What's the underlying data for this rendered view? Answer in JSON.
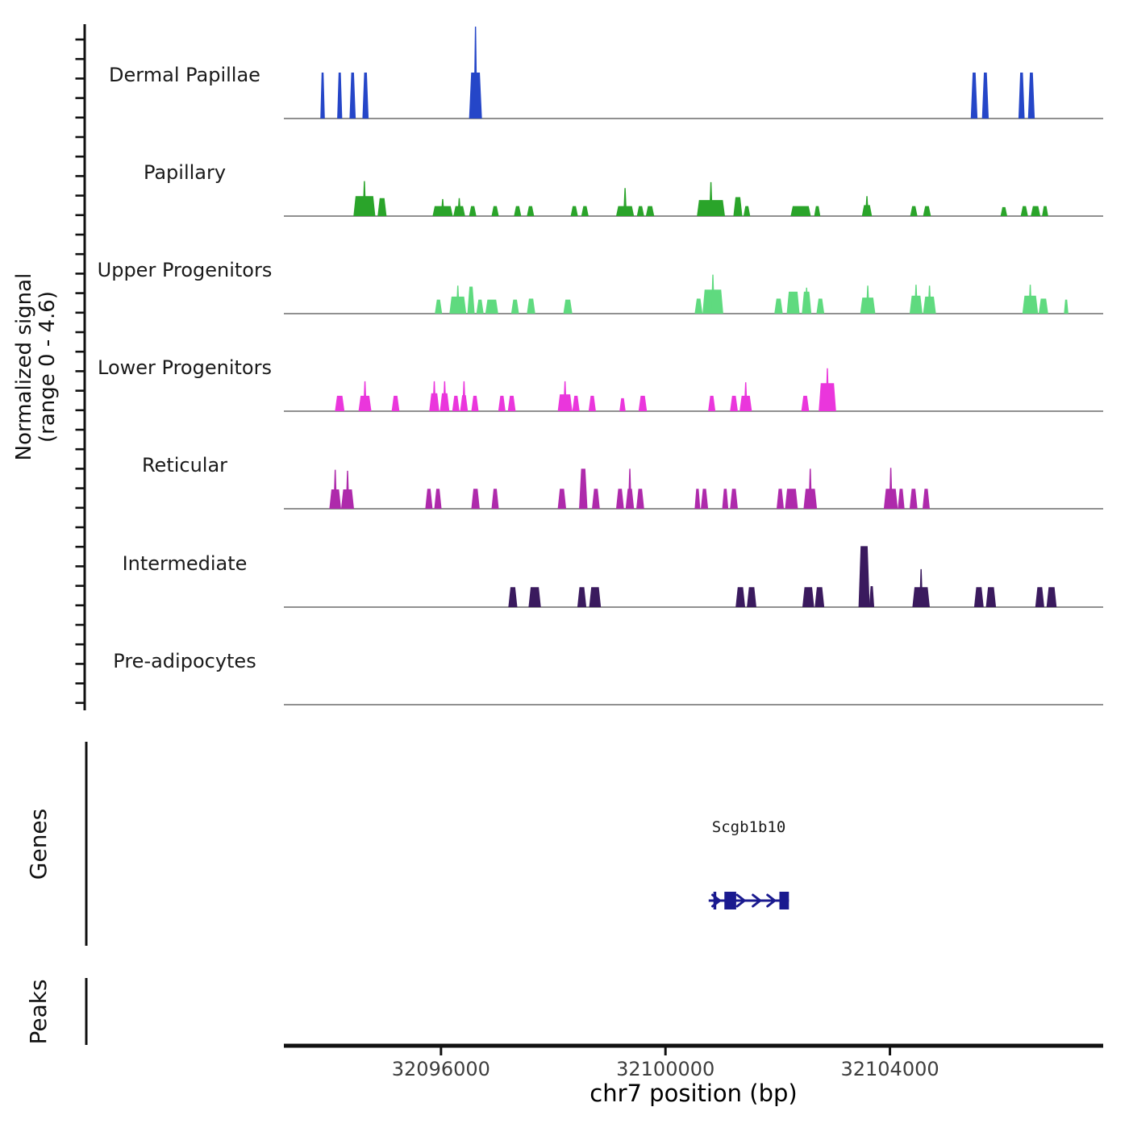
{
  "figure": {
    "y_axis_label_line1": "Normalized signal",
    "y_axis_label_line2": "(range 0 - 4.6)",
    "genes_section_label": "Genes",
    "peaks_section_label": "Peaks"
  },
  "chart_data": {
    "type": "area",
    "description": "Genome browser signal tracks, normalized ATAC/ChIP-style coverage per cell population",
    "x_axis": {
      "title": "chr7 position (bp)",
      "min": 32093200,
      "max": 32107800,
      "ticks": [
        {
          "pos": 32096000,
          "label": "32096000"
        },
        {
          "pos": 32100000,
          "label": "32100000"
        },
        {
          "pos": 32104000,
          "label": "32104000"
        }
      ]
    },
    "y_axis": {
      "min": 0,
      "max": 4.6,
      "label": "Normalized signal",
      "range_note": "(range 0 - 4.6)"
    },
    "tracks": [
      {
        "label": "Dermal Papillae",
        "color": "#2546C8",
        "peaks": [
          [
            32093850,
            32093930,
            2.3,
            0
          ],
          [
            32094150,
            32094240,
            2.3,
            0
          ],
          [
            32094370,
            32094480,
            2.3,
            0
          ],
          [
            32094600,
            32094710,
            2.3,
            0
          ],
          [
            32096500,
            32096730,
            2.3,
            4.6
          ],
          [
            32105440,
            32105560,
            2.3,
            0
          ],
          [
            32105640,
            32105760,
            2.3,
            0
          ],
          [
            32106290,
            32106400,
            2.3,
            0
          ],
          [
            32106460,
            32106580,
            2.3,
            0
          ]
        ]
      },
      {
        "label": "Papillary",
        "color": "#2AA42A",
        "peaks": [
          [
            32094440,
            32094830,
            1.0,
            1.75
          ],
          [
            32094870,
            32095030,
            0.9,
            0
          ],
          [
            32095850,
            32096210,
            0.5,
            0.85
          ],
          [
            32096220,
            32096430,
            0.5,
            0.9
          ],
          [
            32096500,
            32096630,
            0.5,
            0
          ],
          [
            32096900,
            32097030,
            0.5,
            0
          ],
          [
            32097300,
            32097430,
            0.5,
            0
          ],
          [
            32097530,
            32097660,
            0.5,
            0
          ],
          [
            32098310,
            32098440,
            0.5,
            0
          ],
          [
            32098500,
            32098630,
            0.5,
            0
          ],
          [
            32099120,
            32099440,
            0.5,
            1.4
          ],
          [
            32099490,
            32099620,
            0.5,
            0
          ],
          [
            32099650,
            32099800,
            0.5,
            0
          ],
          [
            32100560,
            32101060,
            0.8,
            1.7
          ],
          [
            32101210,
            32101370,
            0.95,
            0
          ],
          [
            32101390,
            32101510,
            0.5,
            0
          ],
          [
            32102230,
            32102590,
            0.5,
            0
          ],
          [
            32102650,
            32102760,
            0.5,
            0
          ],
          [
            32103500,
            32103680,
            0.55,
            1.0
          ],
          [
            32104360,
            32104490,
            0.5,
            0
          ],
          [
            32104590,
            32104730,
            0.5,
            0
          ],
          [
            32105970,
            32106090,
            0.45,
            0
          ],
          [
            32106330,
            32106460,
            0.5,
            0
          ],
          [
            32106510,
            32106680,
            0.5,
            0
          ],
          [
            32106710,
            32106820,
            0.5,
            0
          ]
        ]
      },
      {
        "label": "Upper Progenitors",
        "color": "#5FDA7F",
        "peaks": [
          [
            32095890,
            32096020,
            0.7,
            0
          ],
          [
            32096150,
            32096450,
            0.85,
            1.4
          ],
          [
            32096470,
            32096600,
            1.35,
            0
          ],
          [
            32096630,
            32096760,
            0.7,
            0
          ],
          [
            32096790,
            32097020,
            0.7,
            0
          ],
          [
            32097250,
            32097390,
            0.7,
            0
          ],
          [
            32097530,
            32097680,
            0.75,
            0
          ],
          [
            32098180,
            32098340,
            0.7,
            0
          ],
          [
            32100520,
            32100660,
            0.75,
            0
          ],
          [
            32100660,
            32101030,
            1.2,
            1.95
          ],
          [
            32101940,
            32102090,
            0.75,
            0
          ],
          [
            32102160,
            32102390,
            1.1,
            0
          ],
          [
            32102430,
            32102600,
            1.1,
            1.3
          ],
          [
            32102690,
            32102830,
            0.75,
            0
          ],
          [
            32103470,
            32103740,
            0.8,
            1.4
          ],
          [
            32104350,
            32104580,
            0.9,
            1.45
          ],
          [
            32104590,
            32104820,
            0.85,
            1.4
          ],
          [
            32106360,
            32106640,
            0.9,
            1.45
          ],
          [
            32106650,
            32106820,
            0.75,
            0
          ],
          [
            32107100,
            32107180,
            0.7,
            0
          ]
        ]
      },
      {
        "label": "Lower Progenitors",
        "color": "#EA36DC",
        "peaks": [
          [
            32094110,
            32094280,
            0.77,
            0
          ],
          [
            32094530,
            32094760,
            0.77,
            1.5
          ],
          [
            32095120,
            32095260,
            0.77,
            0
          ],
          [
            32095790,
            32095970,
            0.9,
            1.5
          ],
          [
            32095980,
            32096150,
            0.9,
            1.5
          ],
          [
            32096200,
            32096330,
            0.77,
            0
          ],
          [
            32096340,
            32096480,
            0.8,
            1.5
          ],
          [
            32096540,
            32096670,
            0.77,
            0
          ],
          [
            32097020,
            32097150,
            0.77,
            0
          ],
          [
            32097190,
            32097330,
            0.77,
            0
          ],
          [
            32098080,
            32098340,
            0.84,
            1.5
          ],
          [
            32098340,
            32098470,
            0.77,
            0
          ],
          [
            32098630,
            32098760,
            0.77,
            0
          ],
          [
            32099180,
            32099290,
            0.65,
            0
          ],
          [
            32099520,
            32099670,
            0.77,
            0
          ],
          [
            32100760,
            32100890,
            0.77,
            0
          ],
          [
            32101150,
            32101290,
            0.77,
            0
          ],
          [
            32101320,
            32101540,
            0.77,
            1.45
          ],
          [
            32102420,
            32102560,
            0.77,
            0
          ],
          [
            32102730,
            32103040,
            1.4,
            2.15
          ]
        ]
      },
      {
        "label": "Reticular",
        "color": "#AE2AAB",
        "peaks": [
          [
            32094010,
            32094220,
            0.97,
            1.95
          ],
          [
            32094220,
            32094450,
            0.97,
            1.9
          ],
          [
            32095720,
            32095850,
            1.0,
            0
          ],
          [
            32095880,
            32096010,
            1.0,
            0
          ],
          [
            32096540,
            32096690,
            1.0,
            0
          ],
          [
            32096900,
            32097030,
            1.0,
            0
          ],
          [
            32098080,
            32098230,
            1.0,
            0
          ],
          [
            32098460,
            32098610,
            2.0,
            0
          ],
          [
            32098690,
            32098830,
            1.0,
            0
          ],
          [
            32099120,
            32099260,
            1.0,
            0
          ],
          [
            32099290,
            32099440,
            1.0,
            2.0
          ],
          [
            32099480,
            32099620,
            1.0,
            0
          ],
          [
            32100520,
            32100620,
            1.0,
            0
          ],
          [
            32100630,
            32100760,
            1.0,
            0
          ],
          [
            32101010,
            32101120,
            1.0,
            0
          ],
          [
            32101150,
            32101290,
            1.0,
            0
          ],
          [
            32101980,
            32102110,
            1.0,
            0
          ],
          [
            32102130,
            32102360,
            1.0,
            0
          ],
          [
            32102460,
            32102700,
            1.0,
            2.0
          ],
          [
            32103890,
            32104140,
            1.0,
            2.05
          ],
          [
            32104140,
            32104260,
            1.0,
            0
          ],
          [
            32104350,
            32104490,
            1.0,
            0
          ],
          [
            32104580,
            32104710,
            1.0,
            0
          ]
        ]
      },
      {
        "label": "Intermediate",
        "color": "#3A1A5E",
        "peaks": [
          [
            32097200,
            32097360,
            1.0,
            0
          ],
          [
            32097560,
            32097780,
            1.0,
            0
          ],
          [
            32098430,
            32098590,
            1.0,
            0
          ],
          [
            32098640,
            32098850,
            1.0,
            0
          ],
          [
            32101250,
            32101420,
            1.0,
            0
          ],
          [
            32101450,
            32101620,
            1.0,
            0
          ],
          [
            32102440,
            32102650,
            1.0,
            0
          ],
          [
            32102660,
            32102830,
            1.0,
            0
          ],
          [
            32103440,
            32103640,
            3.05,
            0
          ],
          [
            32103630,
            32103720,
            1.05,
            0
          ],
          [
            32104400,
            32104710,
            1.0,
            1.9
          ],
          [
            32105500,
            32105670,
            1.0,
            0
          ],
          [
            32105710,
            32105890,
            1.0,
            0
          ],
          [
            32106590,
            32106750,
            1.0,
            0
          ],
          [
            32106790,
            32106970,
            1.0,
            0
          ]
        ]
      },
      {
        "label": "Pre-adipocytes",
        "color": "#8A8A8A",
        "peaks": []
      }
    ],
    "genes": {
      "label": "Genes",
      "gene": {
        "name": "Scgb1b10",
        "start": 32100770,
        "end": 32102200,
        "strand": "+",
        "start_tick": 32100880,
        "arrows": [
          32100910,
          32101350,
          32101630,
          32101890
        ],
        "exons": [
          [
            32101050,
            32101260
          ],
          [
            32102030,
            32102200
          ]
        ],
        "color": "#1A1A8F"
      }
    },
    "peaks_track": {
      "label": "Peaks",
      "items": []
    }
  }
}
